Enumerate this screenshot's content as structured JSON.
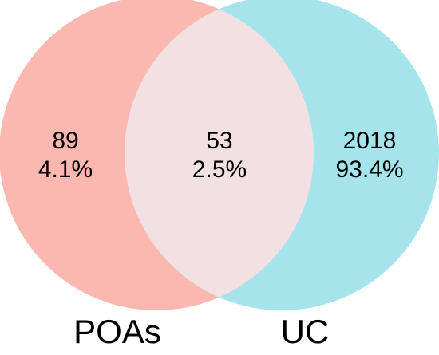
{
  "sets": [
    {
      "name": "POAs",
      "color": "#FBB8B1"
    },
    {
      "name": "UC",
      "color": "#A5E4EB"
    }
  ],
  "intersection_color": "#F3E0E3",
  "regions": {
    "left_only": {
      "count": "89",
      "percent": "4.1%"
    },
    "both": {
      "count": "53",
      "percent": "2.5%"
    },
    "right_only": {
      "count": "2018",
      "percent": "93.4%"
    }
  }
}
